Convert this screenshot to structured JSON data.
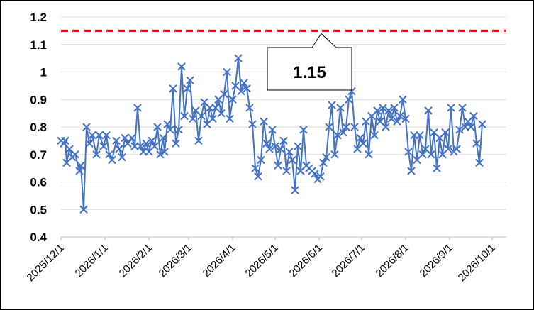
{
  "chart_data": {
    "type": "line",
    "title": "",
    "xlabel": "",
    "ylabel": "",
    "ylim": [
      0.4,
      1.2
    ],
    "y_ticks": [
      "1.2",
      "1.1",
      "1",
      "0.9",
      "0.8",
      "0.7",
      "0.6",
      "0.5",
      "0.4"
    ],
    "x_ticks": [
      "2025/12/1",
      "2026/1/1",
      "2026/2/1",
      "2026/3/1",
      "2026/4/1",
      "2026/5/1",
      "2026/6/1",
      "2026/7/1",
      "2026/8/1",
      "2026/9/1",
      "2026/10/1"
    ],
    "grid": true,
    "series_color": "#4472C4",
    "marker": "x",
    "threshold": {
      "value": 1.15,
      "color": "#E00000",
      "style": "dashed"
    },
    "annotation": {
      "text": "1.15"
    },
    "series": [
      {
        "x": [
          "2025-12-01",
          "2025-12-03",
          "2025-12-04",
          "2025-12-05",
          "2025-12-07",
          "2025-12-09",
          "2025-12-11",
          "2025-12-14",
          "2025-12-15",
          "2025-12-17",
          "2025-12-19",
          "2025-12-21",
          "2025-12-23",
          "2025-12-26",
          "2025-12-28",
          "2025-12-31",
          "2026-01-02",
          "2026-01-04",
          "2026-01-06",
          "2026-01-09",
          "2026-01-11",
          "2026-01-13",
          "2026-01-15",
          "2026-01-17",
          "2026-01-20",
          "2026-01-22",
          "2026-01-24",
          "2026-01-26",
          "2026-01-28",
          "2026-01-30",
          "2026-02-01",
          "2026-02-03",
          "2026-02-05",
          "2026-02-07",
          "2026-02-09",
          "2026-02-11",
          "2026-02-12",
          "2026-02-14",
          "2026-02-16",
          "2026-02-18",
          "2026-02-20",
          "2026-02-22",
          "2026-02-24",
          "2026-02-26",
          "2026-02-28",
          "2026-03-02",
          "2026-03-04",
          "2026-03-06",
          "2026-03-08",
          "2026-03-10",
          "2026-03-12",
          "2026-03-14",
          "2026-03-16",
          "2026-03-18",
          "2026-03-20",
          "2026-03-22",
          "2026-03-24",
          "2026-03-26",
          "2026-03-28",
          "2026-03-30",
          "2026-04-01",
          "2026-04-03",
          "2026-04-05",
          "2026-04-07",
          "2026-04-09",
          "2026-04-11",
          "2026-04-13",
          "2026-04-15",
          "2026-04-17",
          "2026-04-19",
          "2026-04-21",
          "2026-04-23",
          "2026-04-25",
          "2026-04-27",
          "2026-04-29",
          "2026-05-01",
          "2026-05-03",
          "2026-05-05",
          "2026-05-07",
          "2026-05-09",
          "2026-05-11",
          "2026-05-13",
          "2026-05-15",
          "2026-05-17",
          "2026-05-19",
          "2026-05-21",
          "2026-05-23",
          "2026-05-25",
          "2026-05-27",
          "2026-05-29",
          "2026-05-31",
          "2026-06-02",
          "2026-06-04",
          "2026-06-06",
          "2026-06-08",
          "2026-06-10",
          "2026-06-12",
          "2026-06-14",
          "2026-06-16",
          "2026-06-18",
          "2026-06-20",
          "2026-06-22",
          "2026-06-24",
          "2026-06-26",
          "2026-06-28",
          "2026-06-30",
          "2026-07-02",
          "2026-07-04",
          "2026-07-06",
          "2026-07-08",
          "2026-07-10",
          "2026-07-12",
          "2026-07-14",
          "2026-07-16",
          "2026-07-18",
          "2026-07-20",
          "2026-07-22",
          "2026-07-24",
          "2026-07-26",
          "2026-07-28",
          "2026-07-30",
          "2026-08-01",
          "2026-08-03",
          "2026-08-05",
          "2026-08-07",
          "2026-08-09",
          "2026-08-11",
          "2026-08-13",
          "2026-08-15",
          "2026-08-17",
          "2026-08-19",
          "2026-08-21",
          "2026-08-23",
          "2026-08-25",
          "2026-08-27",
          "2026-08-29",
          "2026-08-31",
          "2026-09-02",
          "2026-09-04",
          "2026-09-06",
          "2026-09-08",
          "2026-09-10",
          "2026-09-12",
          "2026-09-14",
          "2026-09-16",
          "2026-09-18",
          "2026-09-20",
          "2026-09-22",
          "2026-09-24"
        ],
        "y": [
          0.75,
          0.74,
          0.75,
          0.67,
          0.72,
          0.69,
          0.7,
          0.64,
          0.66,
          0.5,
          0.8,
          0.74,
          0.77,
          0.7,
          0.77,
          0.73,
          0.77,
          0.7,
          0.68,
          0.75,
          0.72,
          0.69,
          0.76,
          0.74,
          0.76,
          0.73,
          0.87,
          0.73,
          0.71,
          0.74,
          0.71,
          0.75,
          0.73,
          0.8,
          0.7,
          0.76,
          0.71,
          0.81,
          0.79,
          0.94,
          0.74,
          0.79,
          1.02,
          0.84,
          0.94,
          0.97,
          0.83,
          0.86,
          0.75,
          0.84,
          0.89,
          0.81,
          0.87,
          0.83,
          0.87,
          0.9,
          0.85,
          0.92,
          1.0,
          0.83,
          0.9,
          0.95,
          1.05,
          0.93,
          0.96,
          0.94,
          0.87,
          0.81,
          0.65,
          0.62,
          0.68,
          0.82,
          0.74,
          0.72,
          0.79,
          0.73,
          0.66,
          0.72,
          0.75,
          0.64,
          0.71,
          0.68,
          0.57,
          0.73,
          0.64,
          0.79,
          0.66,
          0.65,
          0.64,
          0.63,
          0.61,
          0.62,
          0.67,
          0.69,
          0.8,
          0.88,
          0.7,
          0.77,
          0.87,
          0.78,
          0.8,
          0.9,
          0.93,
          0.8,
          0.72,
          0.76,
          0.74,
          0.82,
          0.7,
          0.84,
          0.77,
          0.86,
          0.82,
          0.87,
          0.8,
          0.86,
          0.83,
          0.87,
          0.82,
          0.84,
          0.9,
          0.83,
          0.71,
          0.64,
          0.77,
          0.68,
          0.77,
          0.7,
          0.72,
          0.86,
          0.7,
          0.78,
          0.65,
          0.76,
          0.7,
          0.78,
          0.72,
          0.87,
          0.71,
          0.72,
          0.79,
          0.87,
          0.8,
          0.82,
          0.8,
          0.84,
          0.74,
          0.67,
          0.81
        ]
      }
    ]
  }
}
